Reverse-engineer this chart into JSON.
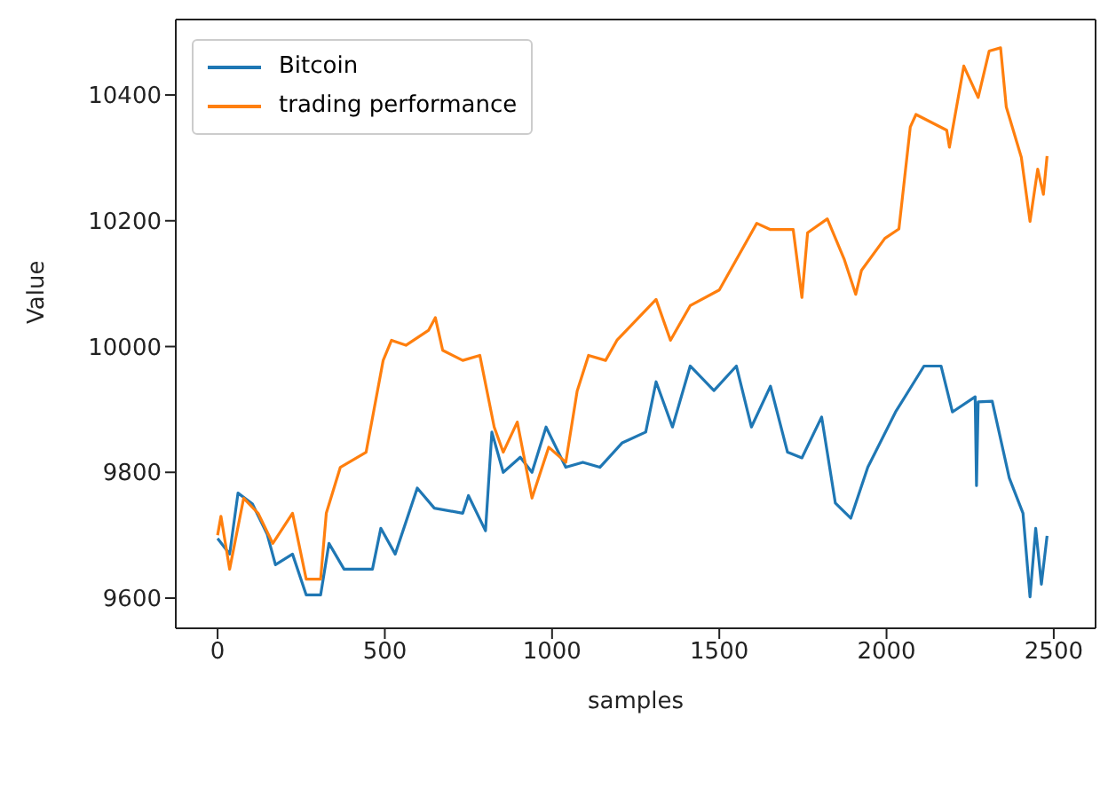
{
  "chart_data": {
    "type": "line",
    "xlabel": "samples",
    "ylabel": "Value",
    "xlim": [
      -125,
      2625
    ],
    "xticks": [
      0,
      500,
      1000,
      1500,
      2000,
      2500
    ],
    "ylim": [
      9552,
      10520
    ],
    "yticks": [
      9600,
      9800,
      10000,
      10200,
      10400
    ],
    "grid": false,
    "legend": "top left",
    "marker": "none",
    "line_style": "solid",
    "series": [
      {
        "name": "Bitcoin",
        "color": "#1f77b4",
        "x": [
          0,
          36,
          61,
          104,
          148,
          173,
          224,
          265,
          308,
          333,
          378,
          463,
          488,
          531,
          597,
          648,
          733,
          750,
          801,
          820,
          854,
          905,
          940,
          982,
          1041,
          1092,
          1143,
          1210,
          1280,
          1311,
          1360,
          1413,
          1484,
          1551,
          1596,
          1653,
          1704,
          1747,
          1806,
          1847,
          1893,
          1944,
          2027,
          2112,
          2163,
          2197,
          2265,
          2269,
          2274,
          2316,
          2367,
          2408,
          2429,
          2446,
          2463,
          2480
        ],
        "values": [
          9695,
          9670,
          9767,
          9750,
          9702,
          9653,
          9670,
          9605,
          9605,
          9687,
          9646,
          9646,
          9711,
          9670,
          9775,
          9743,
          9735,
          9763,
          9707,
          9864,
          9800,
          9824,
          9800,
          9872,
          9808,
          9816,
          9808,
          9847,
          9864,
          9944,
          9872,
          9969,
          9930,
          9969,
          9872,
          9937,
          9832,
          9823,
          9888,
          9751,
          9727,
          9808,
          9896,
          9969,
          9969,
          9896,
          9920,
          9779,
          9912,
          9913,
          9791,
          9735,
          9602,
          9711,
          9622,
          9699
        ]
      },
      {
        "name": "trading performance",
        "color": "#ff7f0e",
        "x": [
          0,
          10,
          36,
          78,
          121,
          165,
          224,
          265,
          308,
          325,
          367,
          444,
          495,
          520,
          563,
          631,
          651,
          673,
          733,
          784,
          827,
          854,
          896,
          940,
          990,
          1041,
          1075,
          1109,
          1160,
          1194,
          1311,
          1354,
          1413,
          1500,
          1612,
          1653,
          1721,
          1747,
          1764,
          1823,
          1874,
          1908,
          1925,
          1995,
          2037,
          2071,
          2088,
          2180,
          2188,
          2231,
          2274,
          2307,
          2341,
          2358,
          2403,
          2429,
          2452,
          2469,
          2480
        ],
        "values": [
          9700,
          9730,
          9646,
          9759,
          9735,
          9687,
          9735,
          9630,
          9630,
          9735,
          9808,
          9832,
          9978,
          10010,
          10002,
          10026,
          10046,
          9994,
          9978,
          9986,
          9872,
          9832,
          9880,
          9759,
          9840,
          9816,
          9929,
          9986,
          9978,
          10010,
          10075,
          10010,
          10065,
          10090,
          10196,
          10186,
          10186,
          10078,
          10181,
          10203,
          10138,
          10083,
          10121,
          10172,
          10187,
          10349,
          10369,
          10344,
          10317,
          10446,
          10396,
          10470,
          10475,
          10381,
          10301,
          10199,
          10282,
          10242,
          10303
        ]
      }
    ]
  }
}
